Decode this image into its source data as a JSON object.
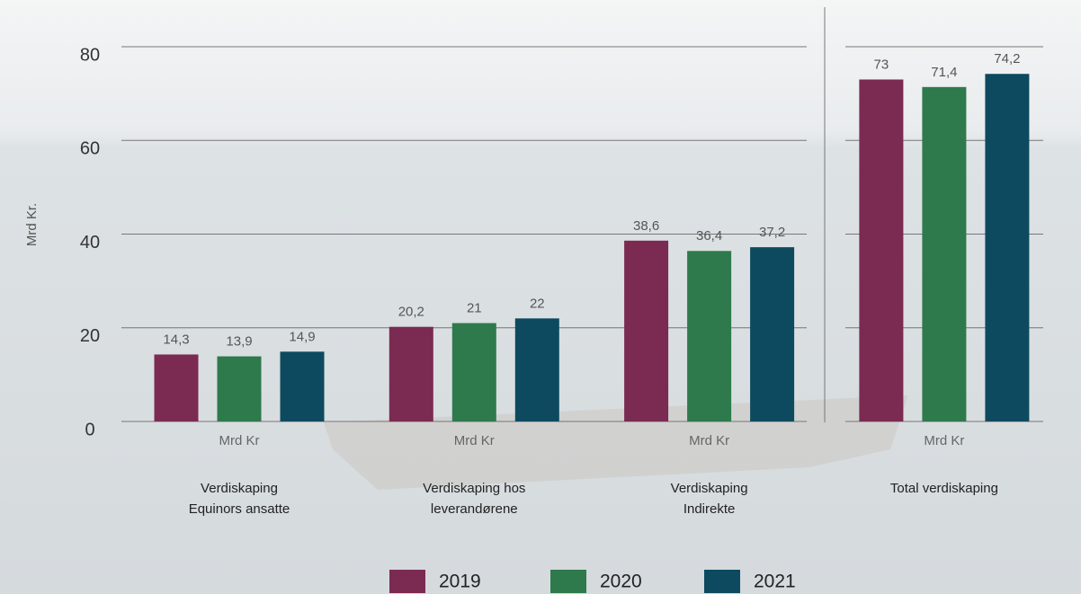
{
  "chart_data": {
    "type": "bar",
    "y_label": "Mrd Kr.",
    "group_label": "Mrd Kr",
    "categories": [
      [
        "Verdiskaping",
        "Equinors ansatte"
      ],
      [
        "Verdiskaping hos",
        "leverandørene"
      ],
      [
        "Verdiskaping",
        "Indirekte"
      ],
      [
        "Total verdiskaping"
      ]
    ],
    "series": [
      {
        "name": "2019",
        "color": "#7b2a52",
        "values": [
          14.3,
          20.2,
          38.6,
          73
        ],
        "value_labels": [
          "14,3",
          "20,2",
          "38,6",
          "73"
        ]
      },
      {
        "name": "2020",
        "color": "#2e7a4c",
        "values": [
          13.9,
          21,
          36.4,
          71.4
        ],
        "value_labels": [
          "13,9",
          "21",
          "36,4",
          "71,4"
        ]
      },
      {
        "name": "2021",
        "color": "#0d4a5f",
        "values": [
          14.9,
          22,
          37.2,
          74.2
        ],
        "value_labels": [
          "14,9",
          "22",
          "37,2",
          "74,2"
        ]
      }
    ],
    "ylim": [
      0,
      80
    ],
    "yticks": [
      0,
      20,
      40,
      60,
      80
    ],
    "grid": true
  }
}
